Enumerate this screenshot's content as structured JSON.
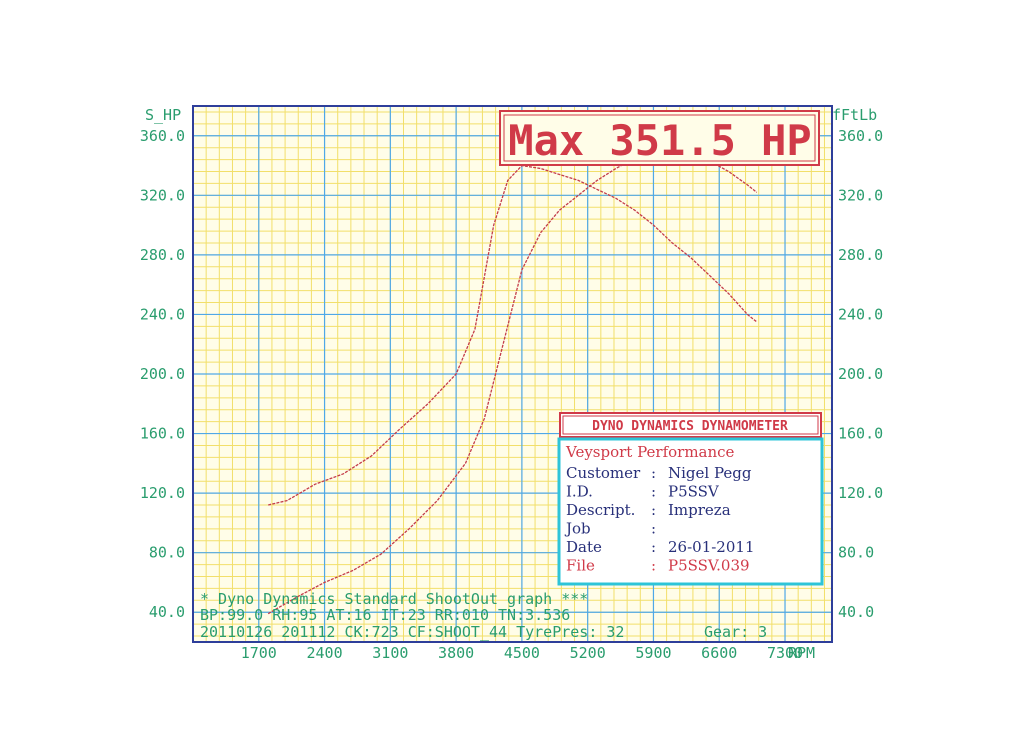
{
  "chart_data": {
    "type": "line",
    "y_left_label": "S_HP",
    "y_right_label": "fFtLb",
    "x_unit_label": "RPM",
    "xlim": [
      1000,
      7800
    ],
    "ylim": [
      20,
      380
    ],
    "x_ticks": [
      1700,
      2400,
      3100,
      3800,
      4500,
      5200,
      5900,
      6600,
      7300
    ],
    "x_tick_labels": [
      "1700",
      "2400",
      "3100",
      "3800",
      "4500",
      "5200",
      "5900",
      "6600",
      "7300"
    ],
    "y_ticks": [
      40,
      80,
      120,
      160,
      200,
      240,
      280,
      320,
      360
    ],
    "y_tick_labels": [
      "40.0",
      "80.0",
      "120.0",
      "160.0",
      "200.0",
      "240.0",
      "280.0",
      "320.0",
      "360.0"
    ],
    "grid": true,
    "series": [
      {
        "color": "#c43c4a",
        "x": [
          1800,
          2100,
          2400,
          2700,
          3000,
          3300,
          3600,
          3900,
          4100,
          4300,
          4500,
          4700,
          4900,
          5100,
          5300,
          5500,
          5700,
          5900,
          6100,
          6300,
          6500,
          6700,
          6900,
          7000
        ],
        "y": [
          39,
          50,
          60,
          68,
          79,
          96,
          115,
          140,
          170,
          220,
          270,
          295,
          310,
          320,
          330,
          338,
          345,
          351.5,
          350,
          347,
          343,
          336,
          327,
          322
        ]
      },
      {
        "color": "#c43c4a",
        "x": [
          1800,
          2000,
          2300,
          2600,
          2900,
          3200,
          3500,
          3800,
          4000,
          4200,
          4350,
          4500,
          4700,
          4900,
          5100,
          5300,
          5500,
          5700,
          5900,
          6100,
          6300,
          6500,
          6700,
          6900,
          7000
        ],
        "y": [
          112,
          115,
          126,
          133,
          145,
          163,
          180,
          200,
          230,
          300,
          330,
          340,
          338,
          334,
          330,
          324,
          318,
          310,
          300,
          288,
          278,
          266,
          254,
          240,
          235
        ]
      }
    ]
  },
  "headline": "Max 351.5 HP",
  "dyno_box": {
    "title": "DYNO DYNAMICS DYNAMOMETER"
  },
  "info": {
    "company": "Veysport Performance",
    "rows": [
      {
        "key": "Customer",
        "sep": ":",
        "value": "Nigel Pegg"
      },
      {
        "key": "I.D.",
        "sep": ":",
        "value": "P5SSV"
      },
      {
        "key": "Descript.",
        "sep": ":",
        "value": "Impreza"
      },
      {
        "key": "Job",
        "sep": ":",
        "value": ""
      },
      {
        "key": "Date",
        "sep": ":",
        "value": "26-01-2011"
      },
      {
        "key": "File",
        "sep": ":",
        "value": "P5SSV.039"
      }
    ]
  },
  "footer": {
    "line1": "* Dyno Dynamics Standard ShootOut graph ***",
    "line2": "BP:99.0  RH:95 AT:16 IT:23  RR:010 TN:3.536",
    "line3": "20110126 201112 CK:723 CF:SHOOT_44 TyrePres: 32",
    "gear": "Gear: 3"
  },
  "colors": {
    "plot_bg": "#fffde8",
    "grid_minor": "#f2df6a",
    "grid_major": "#4fa8e8",
    "frame": "#2e3e9a",
    "tick_text": "#2a9d6e",
    "curve": "#c43c4a",
    "info_border": "#2ec4d8",
    "red_text": "#d03a48",
    "navy_text": "#28307a"
  }
}
